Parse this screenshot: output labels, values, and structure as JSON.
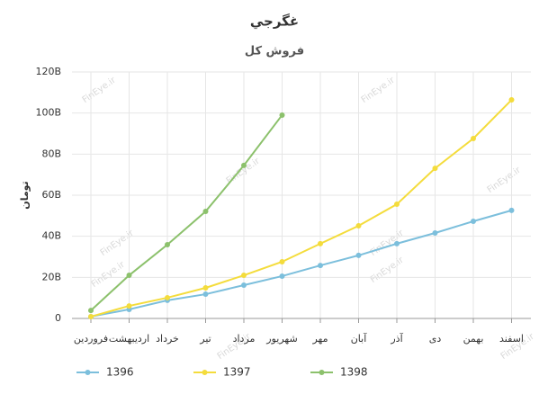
{
  "chart_data": {
    "type": "line",
    "title": "غگرجي",
    "subtitle": "فروش کل",
    "ylabel": "تومان",
    "watermark": "FinEye.ir",
    "categories": [
      "فروردین",
      "اردیبهشت",
      "خرداد",
      "تیر",
      "مرداد",
      "شهریور",
      "مهر",
      "آبان",
      "آذر",
      "دی",
      "بهمن",
      "اسفند"
    ],
    "series": [
      {
        "name": "1396",
        "color": "#7cbfdc",
        "values": [
          900000000,
          4400000000,
          8800000000,
          11800000000,
          16200000000,
          20600000000,
          25800000000,
          30700000000,
          36400000000,
          41600000000,
          47300000000,
          52600000000
        ]
      },
      {
        "name": "1397",
        "color": "#f4dc3c",
        "values": [
          900000000,
          6100000000,
          10100000000,
          14900000000,
          21000000000,
          27600000000,
          36400000000,
          45100000000,
          55600000000,
          73100000000,
          87600000000,
          106400000000
        ]
      },
      {
        "name": "1398",
        "color": "#8cc16c",
        "values": [
          3900000000,
          21000000000,
          35900000000,
          52100000000,
          74500000000,
          99000000000,
          null,
          null,
          null,
          null,
          null,
          null
        ]
      }
    ],
    "ylim": [
      0,
      120000000000
    ],
    "yticks": [
      0,
      {
        "value": 20000000000,
        "label": "20B"
      },
      {
        "value": 40000000000,
        "label": "40B"
      },
      {
        "value": 60000000000,
        "label": "60B"
      },
      {
        "value": 80000000000,
        "label": "80B"
      },
      {
        "value": 100000000000,
        "label": "100B"
      },
      {
        "value": 120000000000,
        "label": "120B"
      }
    ],
    "grid": true,
    "legend": "bottom"
  }
}
